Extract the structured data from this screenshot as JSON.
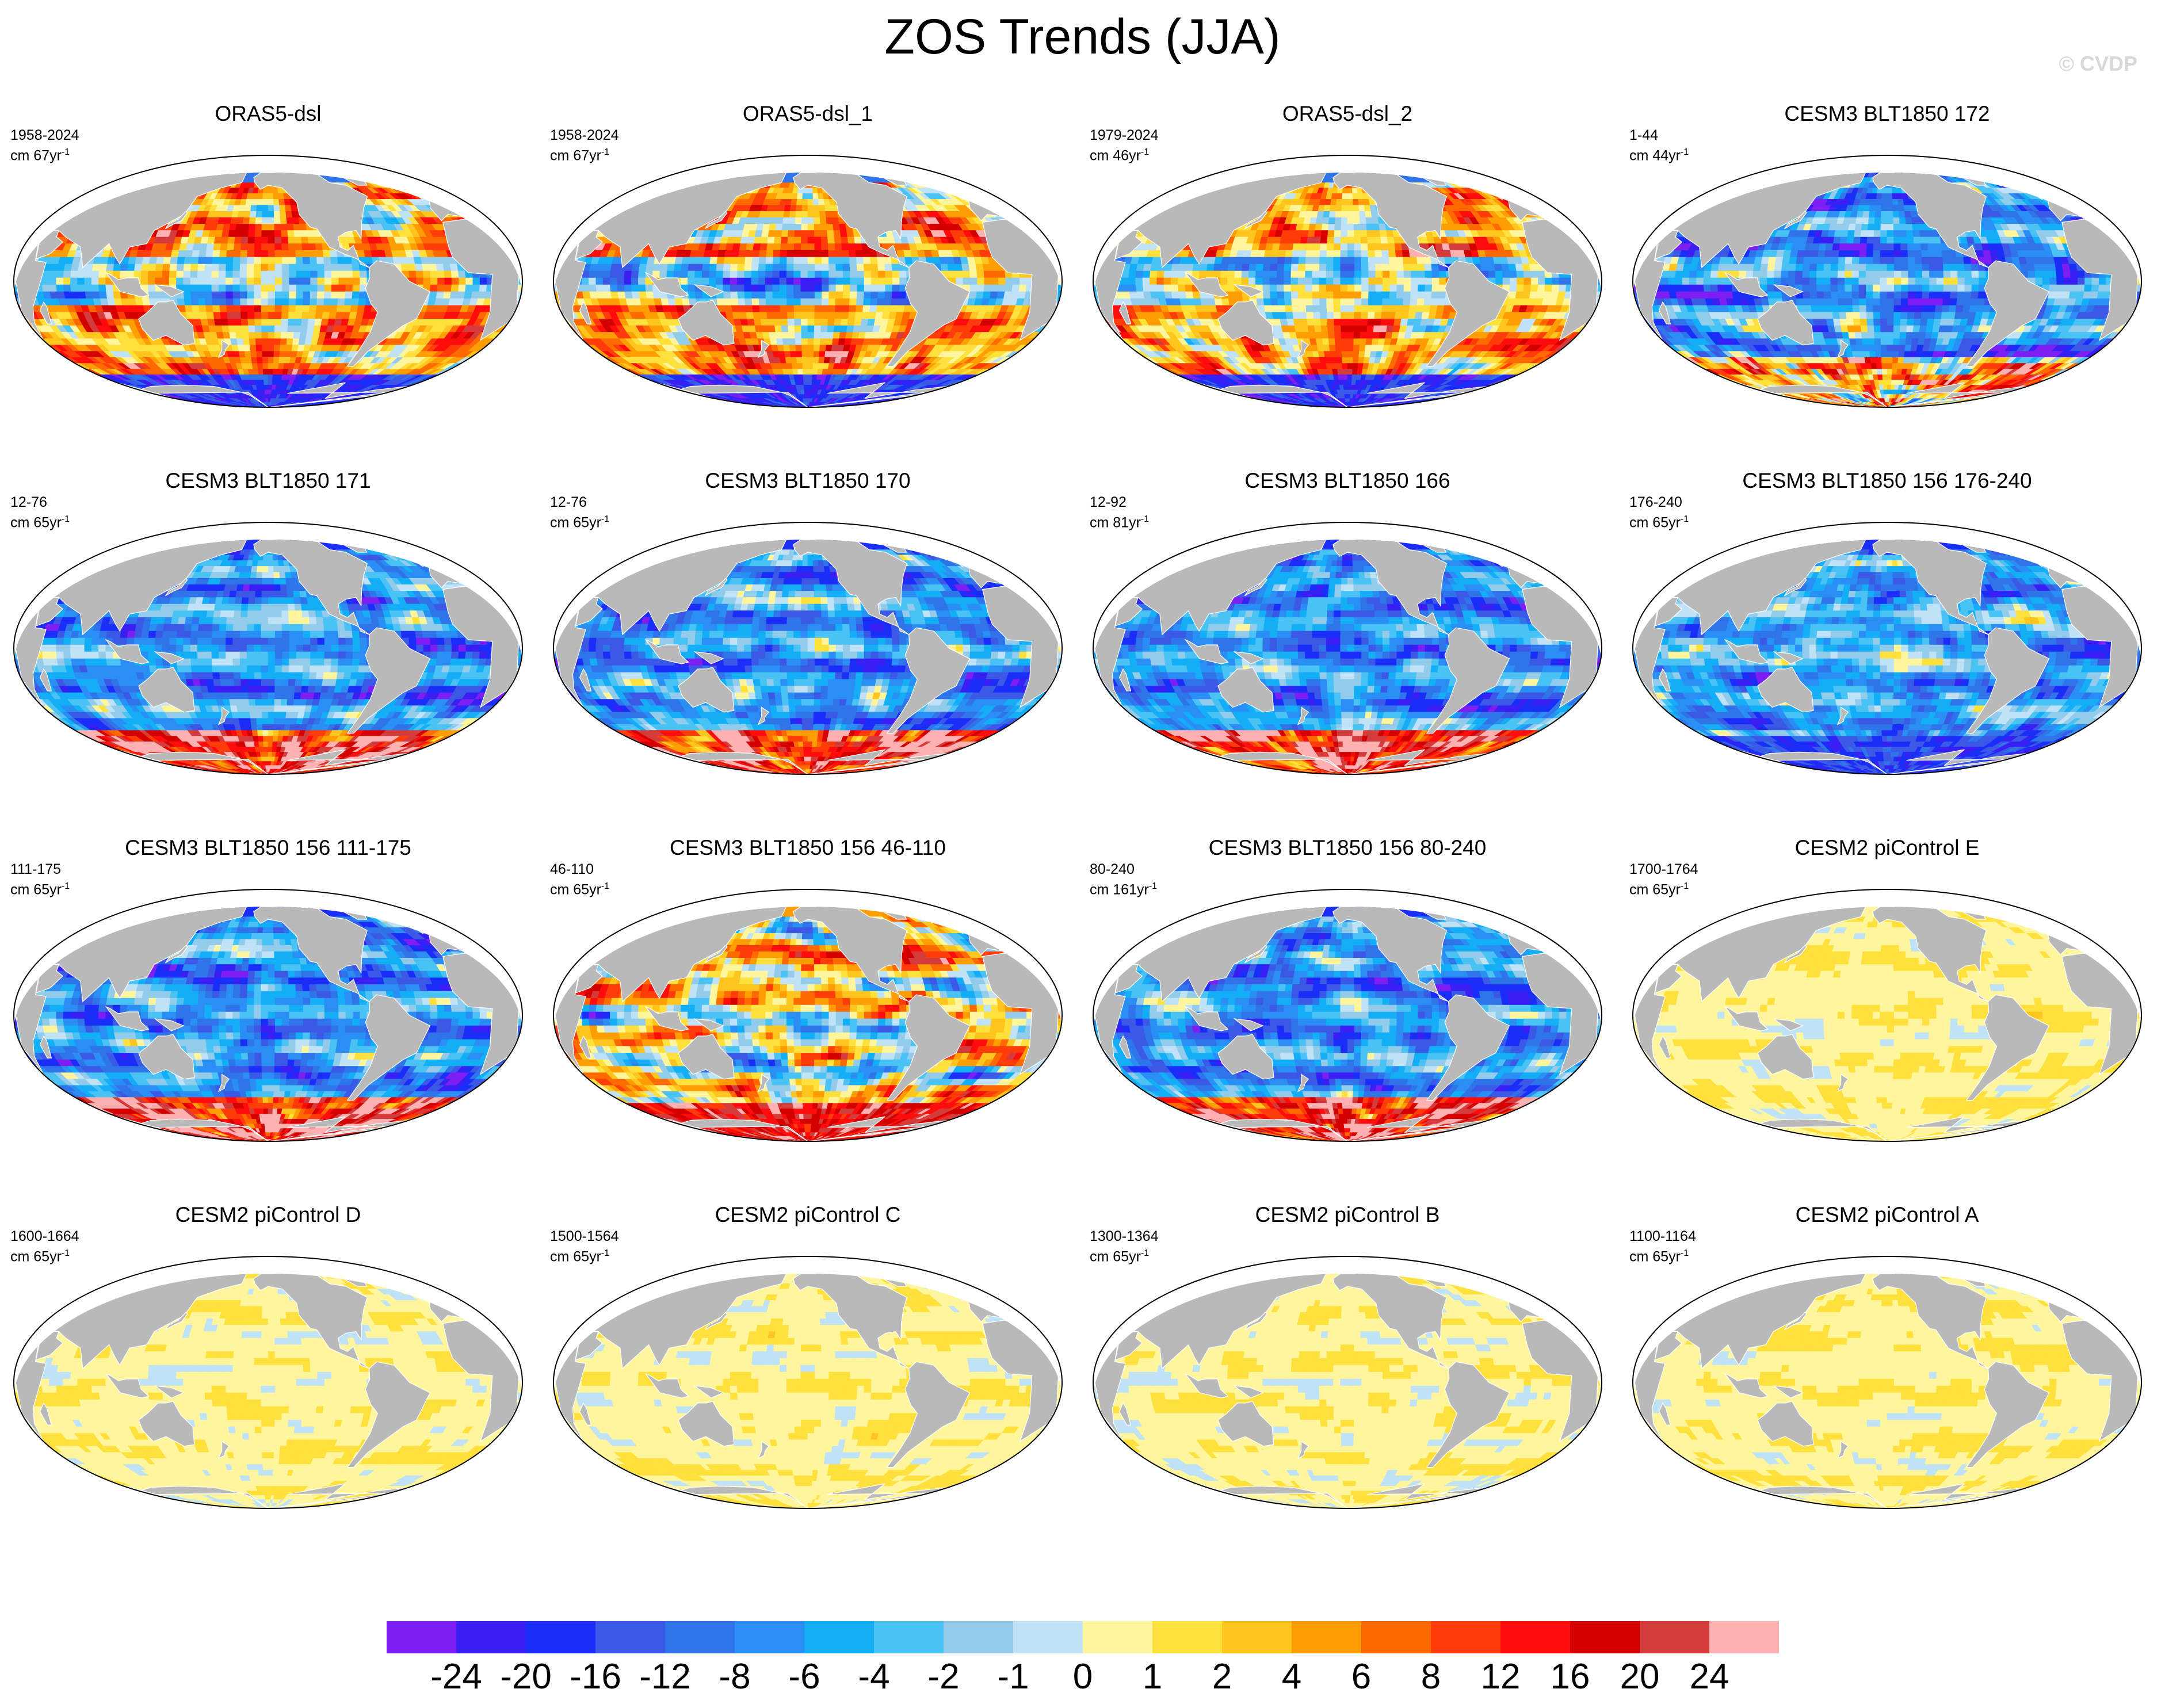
{
  "title": "ZOS Trends (JJA)",
  "watermark": "© CVDP",
  "colors": {
    "land": "#b9b9b9",
    "levels": [
      "#7d1ef2",
      "#3a1ff2",
      "#1a2ef7",
      "#3b58e6",
      "#2f74e8",
      "#2a8ef5",
      "#14aef6",
      "#4bc2f4",
      "#93ccea",
      "#bfe2f7",
      "#fff59d",
      "#ffe03c",
      "#ffc51f",
      "#ff9d05",
      "#ff6a00",
      "#ff3c0a",
      "#ff0d0d",
      "#d40000",
      "#d43b3b",
      "#ffb0b0"
    ]
  },
  "chart_data": {
    "type": "heatmap",
    "colorbar": {
      "labels": [
        "-24",
        "-20",
        "-16",
        "-12",
        "-8",
        "-6",
        "-4",
        "-2",
        "-1",
        "0",
        "1",
        "2",
        "4",
        "6",
        "8",
        "12",
        "16",
        "20",
        "24"
      ]
    },
    "panels": [
      {
        "title": "ORAS5-dsl",
        "period": "1958-2024",
        "units": "cm 67yr",
        "pattern": "warm-obs"
      },
      {
        "title": "ORAS5-dsl_1",
        "period": "1958-2024",
        "units": "cm 67yr",
        "pattern": "warm-obs"
      },
      {
        "title": "ORAS5-dsl_2",
        "period": "1979-2024",
        "units": "cm 46yr",
        "pattern": "warm-obs"
      },
      {
        "title": "CESM3 BLT1850 172",
        "period": "1-44",
        "units": "cm 44yr",
        "pattern": "cool-south-warm"
      },
      {
        "title": "CESM3 BLT1850 171",
        "period": "12-76",
        "units": "cm 65yr",
        "pattern": "cool-south-hot"
      },
      {
        "title": "CESM3 BLT1850 170",
        "period": "12-76",
        "units": "cm 65yr",
        "pattern": "cool-south-hot"
      },
      {
        "title": "CESM3 BLT1850 166",
        "period": "12-92",
        "units": "cm 81yr",
        "pattern": "cool-south-hot"
      },
      {
        "title": "CESM3 BLT1850 156 176-240",
        "period": "176-240",
        "units": "cm 65yr",
        "pattern": "cool-south-cold"
      },
      {
        "title": "CESM3 BLT1850 156 111-175",
        "period": "111-175",
        "units": "cm 65yr",
        "pattern": "cool-south-hot"
      },
      {
        "title": "CESM3 BLT1850 156 46-110",
        "period": "46-110",
        "units": "cm 65yr",
        "pattern": "mixed-warm"
      },
      {
        "title": "CESM3 BLT1850 156 80-240",
        "period": "80-240",
        "units": "cm 161yr",
        "pattern": "cool-south-hot"
      },
      {
        "title": "CESM2 piControl E",
        "period": "1700-1764",
        "units": "cm 65yr",
        "pattern": "weak"
      },
      {
        "title": "CESM2 piControl D",
        "period": "1600-1664",
        "units": "cm 65yr",
        "pattern": "weak"
      },
      {
        "title": "CESM2 piControl C",
        "period": "1500-1564",
        "units": "cm 65yr",
        "pattern": "weak"
      },
      {
        "title": "CESM2 piControl B",
        "period": "1300-1364",
        "units": "cm 65yr",
        "pattern": "weak"
      },
      {
        "title": "CESM2 piControl A",
        "period": "1100-1164",
        "units": "cm 65yr",
        "pattern": "weak"
      }
    ]
  }
}
